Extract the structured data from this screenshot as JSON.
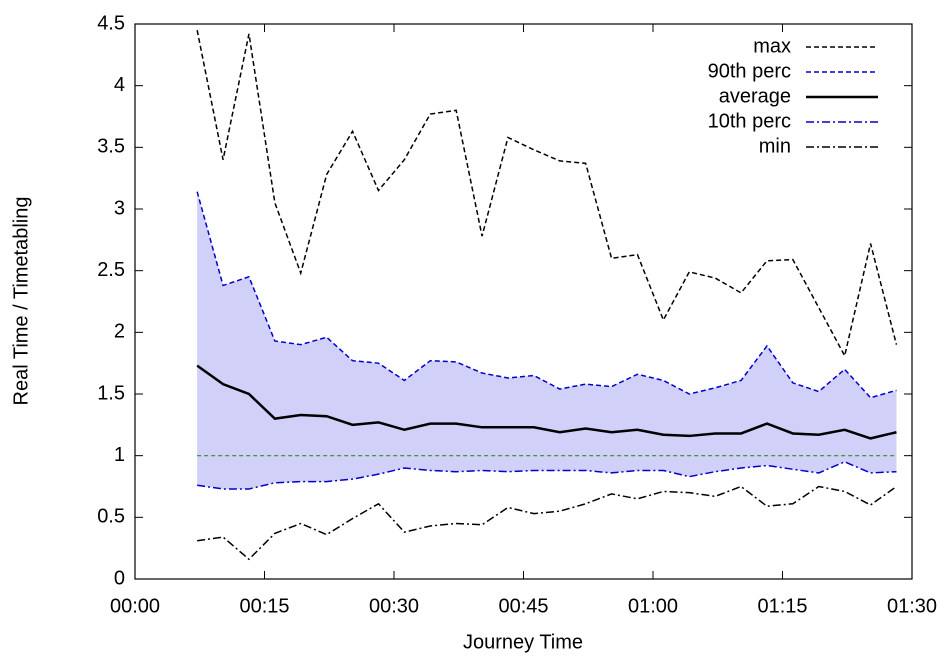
{
  "chart_data": {
    "type": "line",
    "xlabel": "Journey Time",
    "ylabel": "Real Time / Timetabling",
    "x": [
      7.2,
      10.2,
      13.2,
      16.2,
      19.2,
      22.2,
      25.2,
      28.2,
      31.2,
      34.2,
      37.2,
      40.2,
      43.2,
      46.2,
      49.2,
      52.2,
      55.2,
      58.2,
      61.2,
      64.2,
      67.2,
      70.2,
      73.2,
      76.2,
      79.2,
      82.2,
      85.2,
      88.2
    ],
    "series": [
      {
        "name": "max",
        "color": "#000000",
        "dash": "5,3",
        "width": 1.5,
        "values": [
          4.45,
          3.4,
          4.42,
          3.05,
          2.48,
          3.28,
          3.63,
          3.15,
          3.4,
          3.77,
          3.8,
          2.78,
          3.58,
          3.48,
          3.39,
          3.37,
          2.6,
          2.63,
          2.1,
          2.49,
          2.44,
          2.32,
          2.58,
          2.59,
          2.2,
          1.81,
          2.72,
          1.9
        ]
      },
      {
        "name": "90th perc",
        "color": "#0000cc",
        "dash": "5,3",
        "width": 1.5,
        "values": [
          3.14,
          2.38,
          2.45,
          1.93,
          1.9,
          1.96,
          1.77,
          1.75,
          1.61,
          1.77,
          1.76,
          1.67,
          1.63,
          1.65,
          1.54,
          1.58,
          1.56,
          1.66,
          1.61,
          1.5,
          1.55,
          1.61,
          1.89,
          1.59,
          1.52,
          1.7,
          1.47,
          1.53
        ]
      },
      {
        "name": "average",
        "color": "#000000",
        "dash": "none",
        "width": 2.5,
        "values": [
          1.73,
          1.58,
          1.5,
          1.3,
          1.33,
          1.32,
          1.25,
          1.27,
          1.21,
          1.26,
          1.26,
          1.23,
          1.23,
          1.23,
          1.19,
          1.22,
          1.19,
          1.21,
          1.17,
          1.16,
          1.18,
          1.18,
          1.26,
          1.18,
          1.17,
          1.21,
          1.14,
          1.19
        ]
      },
      {
        "name": "10th perc",
        "color": "#0000cc",
        "dash": "8,3,2,3",
        "width": 1.5,
        "values": [
          0.76,
          0.73,
          0.73,
          0.78,
          0.79,
          0.79,
          0.81,
          0.85,
          0.9,
          0.88,
          0.87,
          0.88,
          0.87,
          0.88,
          0.88,
          0.88,
          0.86,
          0.88,
          0.88,
          0.83,
          0.87,
          0.9,
          0.92,
          0.89,
          0.86,
          0.95,
          0.86,
          0.87
        ]
      },
      {
        "name": "min",
        "color": "#000000",
        "dash": "8,3,2,3",
        "width": 1.5,
        "values": [
          0.31,
          0.34,
          0.16,
          0.37,
          0.45,
          0.36,
          0.49,
          0.61,
          0.38,
          0.43,
          0.45,
          0.44,
          0.58,
          0.53,
          0.55,
          0.61,
          0.69,
          0.65,
          0.71,
          0.7,
          0.67,
          0.75,
          0.59,
          0.61,
          0.75,
          0.71,
          0.6,
          0.75
        ]
      }
    ],
    "band_color": "#d0d0f8",
    "reference_line": {
      "value": 1,
      "color": "#2e8b2e"
    },
    "xlim": [
      0,
      90
    ],
    "xticks": [
      {
        "value": 0,
        "label": "00:00"
      },
      {
        "value": 15,
        "label": "00:15"
      },
      {
        "value": 30,
        "label": "00:30"
      },
      {
        "value": 45,
        "label": "00:45"
      },
      {
        "value": 60,
        "label": "01:00"
      },
      {
        "value": 75,
        "label": "01:15"
      },
      {
        "value": 90,
        "label": "01:30"
      }
    ],
    "ylim": [
      0,
      4.5
    ],
    "yticks": [
      0,
      0.5,
      1,
      1.5,
      2,
      2.5,
      3,
      3.5,
      4,
      4.5
    ],
    "grid": false,
    "legend": "top-right"
  }
}
